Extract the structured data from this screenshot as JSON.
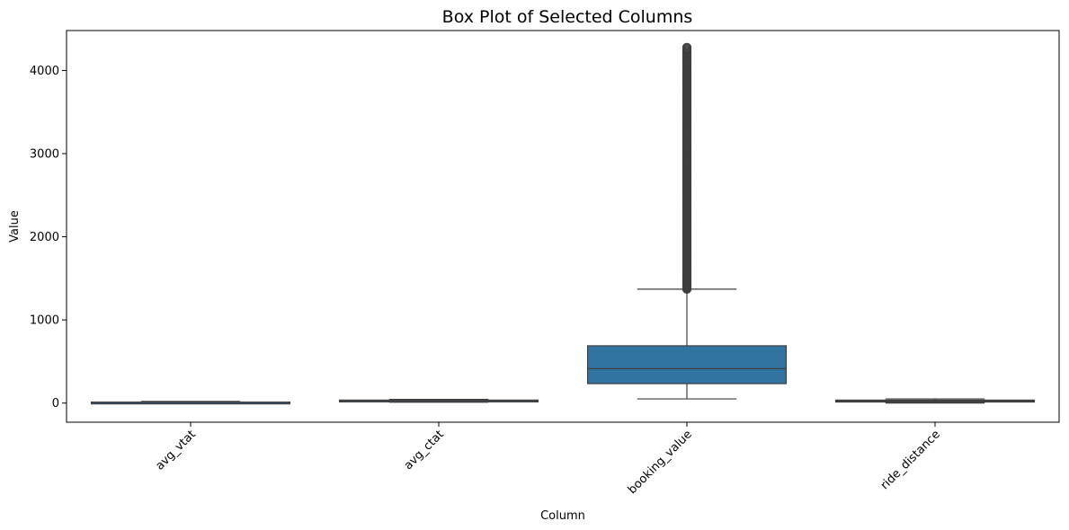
{
  "chart_data": {
    "type": "box",
    "title": "Box Plot of Selected Columns",
    "xlabel": "Column",
    "ylabel": "Value",
    "ylim": [
      -230,
      4480
    ],
    "yticks": [
      0,
      1000,
      2000,
      3000,
      4000
    ],
    "yticks_labels": [
      "0",
      "1000",
      "2000",
      "3000",
      "4000"
    ],
    "categories": [
      "avg_vtat",
      "avg_ctat",
      "booking_value",
      "ride_distance"
    ],
    "grid": false,
    "legend": "none",
    "colors": {
      "box_fill": "#3274a1",
      "edge": "#3f3f3f"
    },
    "boxes": [
      {
        "category": "avg_vtat",
        "whisker_low": 2,
        "q1": 5,
        "median": 8,
        "q3": 12,
        "whisker_high": 20,
        "outliers": []
      },
      {
        "category": "avg_ctat",
        "whisker_low": 10,
        "q1": 21,
        "median": 28,
        "q3": 36,
        "whisker_high": 45,
        "outliers": []
      },
      {
        "category": "booking_value",
        "whisker_low": 50,
        "q1": 234,
        "median": 414,
        "q3": 689,
        "whisker_high": 1370,
        "outlier_range": [
          1370,
          4277
        ]
      },
      {
        "category": "ride_distance",
        "whisker_low": 1,
        "q1": 13,
        "median": 24,
        "q3": 36,
        "whisker_high": 50,
        "outliers": []
      }
    ]
  }
}
